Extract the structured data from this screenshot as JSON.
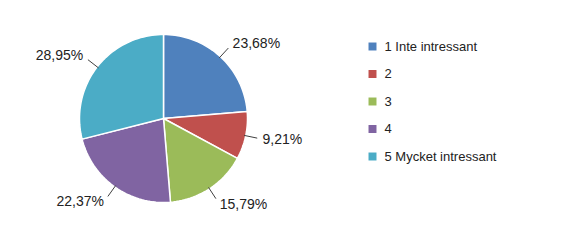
{
  "chart_data": {
    "type": "pie",
    "categories": [
      "1 Inte intressant",
      "2",
      "3",
      "4",
      "5 Mycket intressant"
    ],
    "values": [
      23.68,
      9.21,
      15.79,
      22.37,
      28.95
    ],
    "value_labels": [
      "23,68%",
      "9,21%",
      "15,79%",
      "22,37%",
      "28,95%"
    ],
    "colors": [
      "#4f81bd",
      "#c0504d",
      "#9bbb59",
      "#8064a2",
      "#4bacc6"
    ],
    "data_labels": true,
    "legend": "right"
  }
}
